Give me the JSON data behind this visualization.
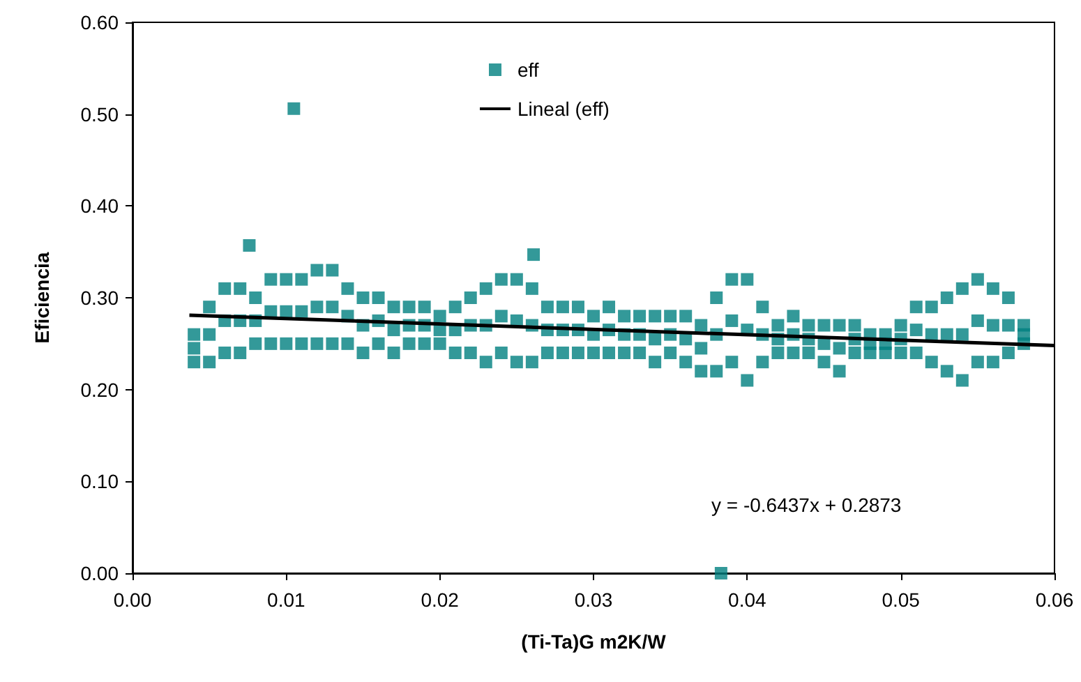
{
  "chart_data": {
    "type": "scatter",
    "xlabel": "(Ti-Ta)G m2K/W",
    "ylabel": "Eficiencia",
    "xlim": [
      0,
      0.06
    ],
    "ylim": [
      0,
      0.6
    ],
    "xticks": [
      {
        "value": 0,
        "label": "0.00"
      },
      {
        "value": 0.01,
        "label": "0.01"
      },
      {
        "value": 0.02,
        "label": "0.02"
      },
      {
        "value": 0.03,
        "label": "0.03"
      },
      {
        "value": 0.04,
        "label": "0.04"
      },
      {
        "value": 0.05,
        "label": "0.05"
      },
      {
        "value": 0.06,
        "label": "0.06"
      }
    ],
    "yticks": [
      {
        "value": 0,
        "label": "0.00"
      },
      {
        "value": 0.1,
        "label": "0.10"
      },
      {
        "value": 0.2,
        "label": "0.20"
      },
      {
        "value": 0.3,
        "label": "0.30"
      },
      {
        "value": 0.4,
        "label": "0.40"
      },
      {
        "value": 0.5,
        "label": "0.50"
      },
      {
        "value": 0.6,
        "label": "0.60"
      }
    ],
    "grid": false,
    "legend": "top",
    "marker": "square",
    "annotations": [
      "y = -0.6437x + 0.2873"
    ],
    "series": [
      {
        "name": "eff",
        "color": "#008080",
        "x": [
          0.004,
          0.004,
          0.004,
          0.005,
          0.005,
          0.005,
          0.006,
          0.006,
          0.006,
          0.007,
          0.007,
          0.007,
          0.008,
          0.008,
          0.008,
          0.009,
          0.009,
          0.009,
          0.01,
          0.01,
          0.01,
          0.011,
          0.011,
          0.011,
          0.012,
          0.012,
          0.012,
          0.013,
          0.013,
          0.013,
          0.014,
          0.014,
          0.014,
          0.015,
          0.015,
          0.015,
          0.016,
          0.016,
          0.016,
          0.017,
          0.017,
          0.017,
          0.018,
          0.018,
          0.018,
          0.019,
          0.019,
          0.019,
          0.02,
          0.02,
          0.02,
          0.021,
          0.021,
          0.021,
          0.022,
          0.022,
          0.022,
          0.023,
          0.023,
          0.023,
          0.024,
          0.024,
          0.024,
          0.025,
          0.025,
          0.025,
          0.026,
          0.026,
          0.026,
          0.027,
          0.027,
          0.027,
          0.028,
          0.028,
          0.028,
          0.029,
          0.029,
          0.029,
          0.03,
          0.03,
          0.03,
          0.031,
          0.031,
          0.031,
          0.032,
          0.032,
          0.032,
          0.033,
          0.033,
          0.033,
          0.034,
          0.034,
          0.034,
          0.035,
          0.035,
          0.035,
          0.036,
          0.036,
          0.036,
          0.037,
          0.037,
          0.037,
          0.038,
          0.038,
          0.038,
          0.039,
          0.039,
          0.039,
          0.04,
          0.04,
          0.04,
          0.041,
          0.041,
          0.041,
          0.042,
          0.042,
          0.042,
          0.043,
          0.043,
          0.043,
          0.044,
          0.044,
          0.044,
          0.045,
          0.045,
          0.045,
          0.046,
          0.046,
          0.046,
          0.047,
          0.047,
          0.047,
          0.048,
          0.048,
          0.048,
          0.049,
          0.049,
          0.049,
          0.05,
          0.05,
          0.05,
          0.051,
          0.051,
          0.051,
          0.052,
          0.052,
          0.052,
          0.053,
          0.053,
          0.053,
          0.054,
          0.054,
          0.054,
          0.055,
          0.055,
          0.055,
          0.056,
          0.056,
          0.056,
          0.057,
          0.057,
          0.057,
          0.058,
          0.058,
          0.058,
          0.0076,
          0.0105,
          0.0261,
          0.0383
        ],
        "values": [
          0.26,
          0.245,
          0.23,
          0.29,
          0.26,
          0.23,
          0.31,
          0.275,
          0.24,
          0.31,
          0.275,
          0.24,
          0.3,
          0.275,
          0.25,
          0.32,
          0.285,
          0.25,
          0.32,
          0.285,
          0.25,
          0.32,
          0.285,
          0.25,
          0.33,
          0.29,
          0.25,
          0.33,
          0.29,
          0.25,
          0.31,
          0.28,
          0.25,
          0.3,
          0.27,
          0.24,
          0.3,
          0.275,
          0.25,
          0.29,
          0.265,
          0.24,
          0.29,
          0.27,
          0.25,
          0.29,
          0.27,
          0.25,
          0.28,
          0.265,
          0.25,
          0.29,
          0.265,
          0.24,
          0.3,
          0.27,
          0.24,
          0.31,
          0.27,
          0.23,
          0.32,
          0.28,
          0.24,
          0.32,
          0.275,
          0.23,
          0.31,
          0.27,
          0.23,
          0.29,
          0.265,
          0.24,
          0.29,
          0.265,
          0.24,
          0.29,
          0.265,
          0.24,
          0.28,
          0.26,
          0.24,
          0.29,
          0.265,
          0.24,
          0.28,
          0.26,
          0.24,
          0.28,
          0.26,
          0.24,
          0.28,
          0.255,
          0.23,
          0.28,
          0.26,
          0.24,
          0.28,
          0.255,
          0.23,
          0.27,
          0.245,
          0.22,
          0.3,
          0.26,
          0.22,
          0.32,
          0.275,
          0.23,
          0.32,
          0.265,
          0.21,
          0.29,
          0.26,
          0.23,
          0.27,
          0.255,
          0.24,
          0.28,
          0.26,
          0.24,
          0.27,
          0.255,
          0.24,
          0.27,
          0.25,
          0.23,
          0.27,
          0.245,
          0.22,
          0.27,
          0.255,
          0.24,
          0.26,
          0.25,
          0.24,
          0.26,
          0.25,
          0.24,
          0.27,
          0.255,
          0.24,
          0.29,
          0.265,
          0.24,
          0.29,
          0.26,
          0.23,
          0.3,
          0.26,
          0.22,
          0.31,
          0.26,
          0.21,
          0.32,
          0.275,
          0.23,
          0.31,
          0.27,
          0.23,
          0.3,
          0.27,
          0.24,
          0.27,
          0.26,
          0.25,
          0.357,
          0.506,
          0.347,
          0.0
        ]
      },
      {
        "name": "Lineal (eff)",
        "type": "line",
        "color": "#000000",
        "marker": "none",
        "line_style": "solid",
        "x": [
          0.0037,
          0.06
        ],
        "values": [
          0.281,
          0.248
        ]
      }
    ]
  }
}
